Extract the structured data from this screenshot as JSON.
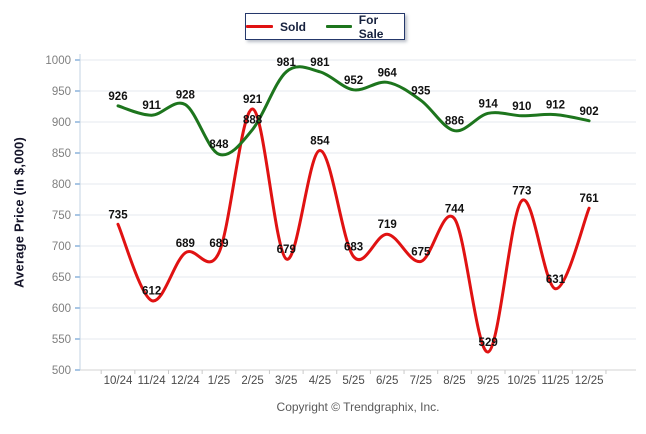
{
  "legend": {
    "items": [
      {
        "label": "Sold",
        "color": "#e01212"
      },
      {
        "label": "For Sale",
        "color": "#1d751d"
      }
    ]
  },
  "footer": {
    "copyright": "Copyright © Trendgraphix, Inc."
  },
  "chart_data": {
    "type": "line",
    "title": "",
    "xlabel": "",
    "ylabel": "Average Price (in $,000)",
    "categories": [
      "10/24",
      "11/24",
      "12/24",
      "1/25",
      "2/25",
      "3/25",
      "4/25",
      "5/25",
      "6/25",
      "7/25",
      "8/25",
      "9/25",
      "10/25",
      "11/25",
      "12/25"
    ],
    "series": [
      {
        "name": "Sold",
        "color": "#e01212",
        "values": [
          735,
          612,
          689,
          689,
          921,
          679,
          854,
          683,
          719,
          675,
          744,
          529,
          773,
          631,
          761
        ]
      },
      {
        "name": "For Sale",
        "color": "#1d751d",
        "values": [
          926,
          911,
          928,
          848,
          888,
          981,
          981,
          952,
          964,
          935,
          886,
          914,
          910,
          912,
          902
        ]
      }
    ],
    "ylim": [
      500,
      1000
    ],
    "yticks": [
      1000,
      950,
      900,
      850,
      800,
      750,
      700,
      650,
      600,
      550,
      500
    ],
    "grid": true,
    "smooth": true,
    "data_labels": true,
    "legend_position": "top-center",
    "colors": {
      "gridline": "#e5eaef",
      "x_axis": "#d3d3d3",
      "y_axis": "#c3d3e3",
      "y_tick": "#a9c6e4",
      "x_tick": "#c9c9c9",
      "tick_label": "#7f7f7f",
      "x_label": "#4a4a4a",
      "data_label": "#111111"
    }
  }
}
